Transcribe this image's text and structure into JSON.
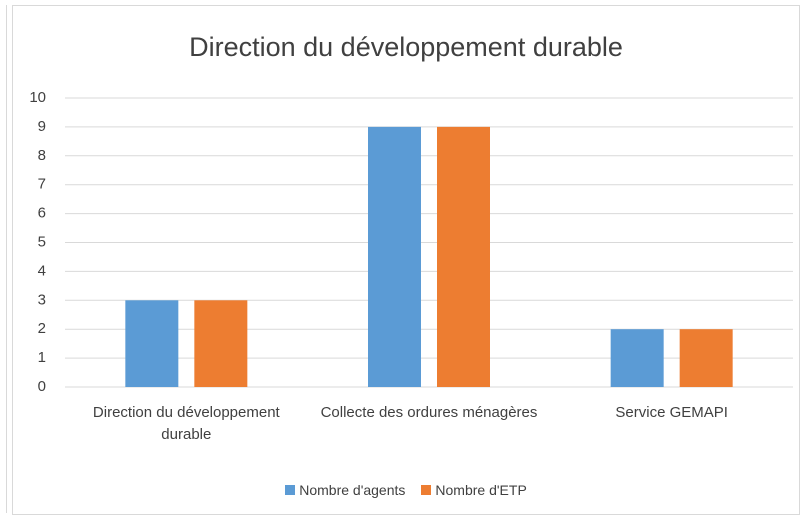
{
  "chart_data": {
    "type": "bar",
    "title": "Direction du développement durable",
    "categories": [
      "Direction du développement durable",
      "Collecte des ordures ménagères",
      "Service GEMAPI"
    ],
    "series": [
      {
        "name": "Nombre d'agents",
        "color": "#5b9bd5",
        "values": [
          3,
          9,
          2
        ]
      },
      {
        "name": "Nombre d'ETP",
        "color": "#ed7d31",
        "values": [
          3,
          9,
          2
        ]
      }
    ],
    "ylim": [
      0,
      10
    ],
    "yticks": [
      0,
      1,
      2,
      3,
      4,
      5,
      6,
      7,
      8,
      9,
      10
    ],
    "grid": true,
    "legend": "bottom"
  }
}
